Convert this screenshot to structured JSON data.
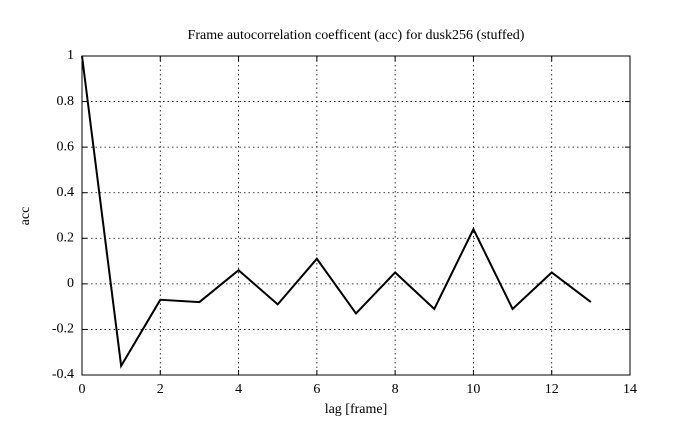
{
  "chart_data": {
    "type": "line",
    "title": "Frame autocorrelation coefficent (acc) for dusk256 (stuffed)",
    "x_label": "lag [frame]",
    "y_label": "acc",
    "x": [
      0,
      1,
      2,
      3,
      4,
      5,
      6,
      7,
      8,
      9,
      10,
      11,
      12,
      13
    ],
    "series": [
      {
        "name": "acc",
        "color": "#000000",
        "values": [
          1,
          -0.36,
          -0.07,
          -0.08,
          0.06,
          -0.09,
          0.11,
          -0.13,
          0.05,
          -0.11,
          0.24,
          -0.11,
          0.05,
          -0.08
        ]
      }
    ],
    "xlim": [
      0,
      14
    ],
    "xticks": [
      0,
      2,
      4,
      6,
      8,
      10,
      12,
      14
    ],
    "ylim": [
      -0.4,
      1
    ],
    "yticks": [
      -0.4,
      -0.2,
      0,
      0.2,
      0.4,
      0.6,
      0.8,
      1
    ],
    "grid": true
  }
}
